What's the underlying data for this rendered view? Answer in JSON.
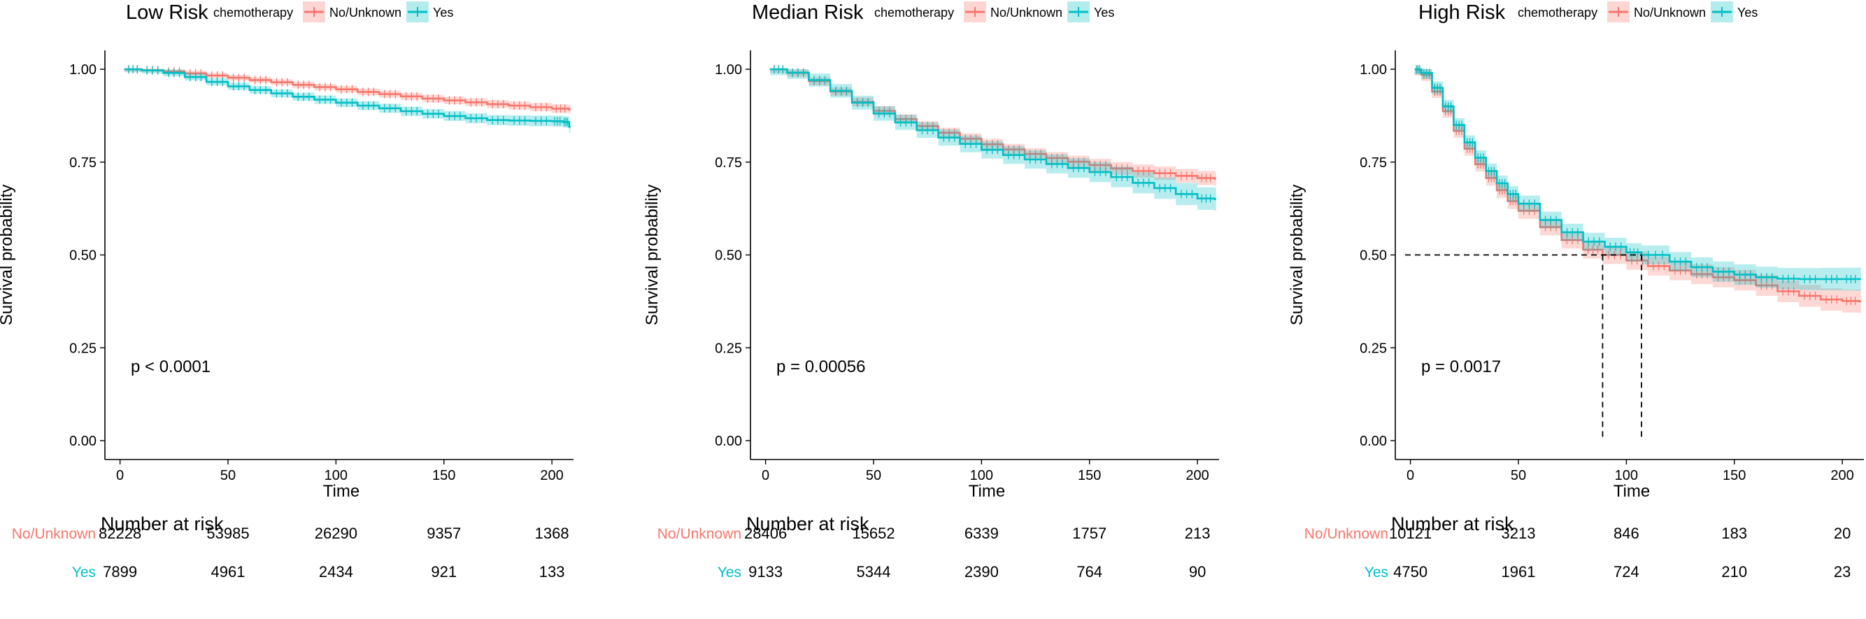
{
  "colors": {
    "no_unknown": "#f8766d",
    "yes": "#00bfc4",
    "no_unknown_band": "#f8766d",
    "yes_band": "#00bfc4"
  },
  "chart_data": [
    {
      "type": "line",
      "title": "Low Risk",
      "legend_title": "chemotherapy",
      "legend_position": "top",
      "xlabel": "Time",
      "ylabel": "Survival probability",
      "xlim": [
        -7,
        210
      ],
      "ylim": [
        0,
        1
      ],
      "x_ticks": [
        0,
        50,
        100,
        150,
        200
      ],
      "x_tick_labels": [
        "0",
        "50",
        "100",
        "150",
        "200"
      ],
      "y_ticks": [
        0,
        0.25,
        0.5,
        0.75,
        1
      ],
      "y_tick_labels": [
        "0.00",
        "0.25",
        "0.50",
        "0.75",
        "1.00"
      ],
      "pvalue_label": "p < 0.0001",
      "series": [
        {
          "name": "No/Unknown",
          "color_key": "no_unknown",
          "band": 0.006,
          "x": [
            2,
            10,
            20,
            30,
            40,
            50,
            60,
            70,
            80,
            90,
            100,
            110,
            120,
            130,
            140,
            150,
            160,
            170,
            180,
            190,
            200,
            208
          ],
          "y": [
            1.0,
            0.998,
            0.994,
            0.989,
            0.983,
            0.977,
            0.971,
            0.965,
            0.958,
            0.952,
            0.946,
            0.939,
            0.933,
            0.927,
            0.921,
            0.916,
            0.911,
            0.906,
            0.902,
            0.898,
            0.894,
            0.891
          ]
        },
        {
          "name": "Yes",
          "color_key": "yes",
          "band": 0.008,
          "x": [
            2,
            10,
            20,
            30,
            40,
            50,
            60,
            70,
            80,
            90,
            100,
            110,
            120,
            130,
            140,
            150,
            160,
            170,
            180,
            190,
            200,
            205,
            208
          ],
          "y": [
            1.0,
            0.997,
            0.99,
            0.979,
            0.966,
            0.954,
            0.944,
            0.935,
            0.926,
            0.918,
            0.91,
            0.902,
            0.895,
            0.887,
            0.88,
            0.874,
            0.868,
            0.863,
            0.862,
            0.861,
            0.86,
            0.858,
            0.845
          ]
        }
      ],
      "risk_table": {
        "title": "Number at risk",
        "times": [
          0,
          50,
          100,
          150,
          200
        ],
        "rows": [
          {
            "group": "No/Unknown",
            "color_key": "no_unknown",
            "values": [
              "82228",
              "53985",
              "26290",
              "9357",
              "1368"
            ]
          },
          {
            "group": "Yes",
            "color_key": "yes",
            "values": [
              "7899",
              "4961",
              "2434",
              "921",
              "133"
            ]
          }
        ]
      }
    },
    {
      "type": "line",
      "title": "Median Risk",
      "legend_title": "chemotherapy",
      "legend_position": "top",
      "xlabel": "Time",
      "ylabel": "Survival probability",
      "xlim": [
        -7,
        210
      ],
      "ylim": [
        0,
        1
      ],
      "x_ticks": [
        0,
        50,
        100,
        150,
        200
      ],
      "x_tick_labels": [
        "0",
        "50",
        "100",
        "150",
        "200"
      ],
      "y_ticks": [
        0,
        0.25,
        0.5,
        0.75,
        1
      ],
      "y_tick_labels": [
        "0.00",
        "0.25",
        "0.50",
        "0.75",
        "1.00"
      ],
      "pvalue_label": "p = 0.00056",
      "series": [
        {
          "name": "No/Unknown",
          "color_key": "no_unknown",
          "band": 0.01,
          "x": [
            2,
            10,
            20,
            30,
            40,
            50,
            60,
            70,
            80,
            90,
            100,
            110,
            120,
            130,
            140,
            150,
            160,
            170,
            180,
            190,
            200,
            208
          ],
          "y": [
            1.0,
            0.99,
            0.968,
            0.94,
            0.912,
            0.888,
            0.866,
            0.847,
            0.829,
            0.813,
            0.798,
            0.784,
            0.772,
            0.761,
            0.751,
            0.742,
            0.733,
            0.726,
            0.72,
            0.713,
            0.707,
            0.705
          ]
        },
        {
          "name": "Yes",
          "color_key": "yes",
          "band": 0.016,
          "x": [
            2,
            10,
            20,
            30,
            40,
            50,
            60,
            70,
            80,
            90,
            100,
            110,
            120,
            130,
            140,
            150,
            160,
            170,
            180,
            190,
            200,
            208
          ],
          "y": [
            1.0,
            0.991,
            0.971,
            0.942,
            0.91,
            0.881,
            0.857,
            0.836,
            0.816,
            0.799,
            0.783,
            0.769,
            0.757,
            0.745,
            0.734,
            0.723,
            0.71,
            0.694,
            0.68,
            0.664,
            0.652,
            0.65
          ]
        }
      ],
      "risk_table": {
        "title": "Number at risk",
        "times": [
          0,
          50,
          100,
          150,
          200
        ],
        "rows": [
          {
            "group": "No/Unknown",
            "color_key": "no_unknown",
            "values": [
              "28406",
              "15652",
              "6339",
              "1757",
              "213"
            ]
          },
          {
            "group": "Yes",
            "color_key": "yes",
            "values": [
              "9133",
              "5344",
              "2390",
              "764",
              "90"
            ]
          }
        ]
      }
    },
    {
      "type": "line",
      "title": "High Risk",
      "legend_title": "chemotherapy",
      "legend_position": "top",
      "xlabel": "Time",
      "ylabel": "Survival probability",
      "xlim": [
        -7,
        210
      ],
      "ylim": [
        0,
        1
      ],
      "x_ticks": [
        0,
        50,
        100,
        150,
        200
      ],
      "x_tick_labels": [
        "0",
        "50",
        "100",
        "150",
        "200"
      ],
      "y_ticks": [
        0,
        0.25,
        0.5,
        0.75,
        1
      ],
      "y_tick_labels": [
        "0.00",
        "0.25",
        "0.50",
        "0.75",
        "1.00"
      ],
      "pvalue_label": "p = 0.0017",
      "median_survival": {
        "y": 0.5,
        "x_values": [
          89,
          107
        ]
      },
      "series": [
        {
          "name": "No/Unknown",
          "color_key": "no_unknown",
          "band": 0.016,
          "x": [
            2,
            5,
            10,
            15,
            20,
            25,
            30,
            35,
            40,
            45,
            50,
            60,
            70,
            80,
            89,
            100,
            110,
            120,
            130,
            140,
            150,
            160,
            170,
            180,
            190,
            200,
            208
          ],
          "y": [
            1.0,
            0.985,
            0.94,
            0.887,
            0.834,
            0.786,
            0.744,
            0.707,
            0.674,
            0.645,
            0.619,
            0.575,
            0.54,
            0.514,
            0.5,
            0.485,
            0.47,
            0.458,
            0.448,
            0.44,
            0.432,
            0.418,
            0.402,
            0.39,
            0.38,
            0.376,
            0.375
          ]
        },
        {
          "name": "Yes",
          "color_key": "yes",
          "band": 0.016,
          "x": [
            2,
            5,
            10,
            15,
            20,
            25,
            30,
            35,
            40,
            45,
            50,
            60,
            70,
            80,
            90,
            100,
            107,
            120,
            130,
            140,
            150,
            160,
            170,
            180,
            190,
            200,
            208
          ],
          "y": [
            1.0,
            0.99,
            0.95,
            0.9,
            0.85,
            0.803,
            0.762,
            0.726,
            0.693,
            0.664,
            0.638,
            0.594,
            0.561,
            0.536,
            0.522,
            0.507,
            0.5,
            0.482,
            0.467,
            0.455,
            0.447,
            0.44,
            0.436,
            0.435,
            0.435,
            0.435,
            0.435
          ]
        }
      ],
      "risk_table": {
        "title": "Number at risk",
        "times": [
          0,
          50,
          100,
          150,
          200
        ],
        "rows": [
          {
            "group": "No/Unknown",
            "color_key": "no_unknown",
            "values": [
              "10121",
              "3213",
              "846",
              "183",
              "20"
            ]
          },
          {
            "group": "Yes",
            "color_key": "yes",
            "values": [
              "4750",
              "1961",
              "724",
              "210",
              "23"
            ]
          }
        ]
      }
    }
  ]
}
